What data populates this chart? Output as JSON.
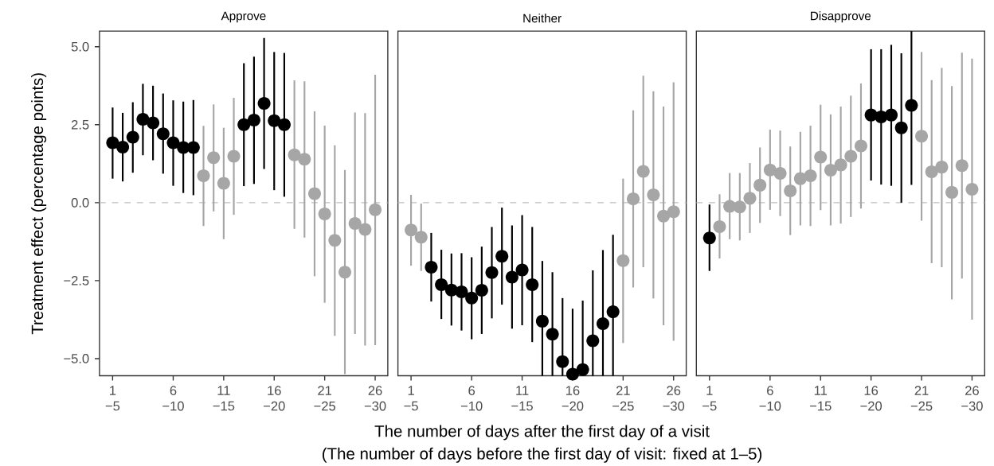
{
  "chart_data": [
    {
      "type": "scatter",
      "title": "Approve",
      "ylabel": "Treatment effect (percentage points)",
      "marker": "circle",
      "categories": [
        "1 −5",
        null,
        null,
        null,
        null,
        null,
        "6 −10",
        null,
        null,
        null,
        null,
        "11 −15",
        null,
        null,
        null,
        null,
        "16 −20",
        null,
        null,
        null,
        null,
        "21 −25",
        null,
        null,
        null,
        null,
        "26 −30"
      ],
      "ylim": [
        -5.55,
        5.5
      ],
      "yticks": [
        {
          "value": -5,
          "label": "−5.0"
        },
        {
          "value": -2.5,
          "label": "−2.5"
        },
        {
          "value": 0,
          "label": "0.0"
        },
        {
          "value": 2.5,
          "label": "2.5"
        },
        {
          "value": 5,
          "label": "5.0"
        }
      ],
      "ref_lines": [
        {
          "axis": "y",
          "value": 0,
          "color": "#bfbfbf",
          "line_style": "dashed"
        }
      ],
      "series": [
        {
          "color": "#000000",
          "values": [
            1.92,
            1.78,
            2.1,
            2.67,
            2.56,
            2.21,
            1.92,
            1.77,
            1.77,
            null,
            null,
            null,
            null,
            2.5,
            2.65,
            3.18,
            2.63,
            2.5,
            null,
            null,
            null,
            null,
            null,
            null,
            null,
            null,
            null
          ],
          "errors": [
            [
              0.77,
              3.05
            ],
            [
              0.68,
              2.88
            ],
            [
              0.96,
              3.22
            ],
            [
              1.52,
              3.81
            ],
            [
              1.36,
              3.75
            ],
            [
              0.93,
              3.5
            ],
            [
              0.54,
              3.28
            ],
            [
              0.31,
              3.24
            ],
            [
              0.24,
              3.29
            ],
            null,
            null,
            null,
            null,
            [
              0.53,
              4.47
            ],
            [
              0.6,
              4.68
            ],
            [
              1.08,
              5.28
            ],
            [
              0.4,
              4.83
            ],
            [
              0.19,
              4.8
            ],
            null,
            null,
            null,
            null,
            null,
            null,
            null,
            null,
            null
          ]
        },
        {
          "color": "#a6a6a6",
          "values": [
            null,
            null,
            null,
            null,
            null,
            null,
            null,
            null,
            null,
            0.86,
            1.44,
            0.62,
            1.49,
            null,
            null,
            null,
            null,
            null,
            1.53,
            1.39,
            0.29,
            -0.36,
            -1.21,
            -2.23,
            -0.67,
            -0.86,
            -0.23
          ],
          "errors": [
            null,
            null,
            null,
            null,
            null,
            null,
            null,
            null,
            null,
            [
              -0.75,
              2.46
            ],
            [
              -0.28,
              3.15
            ],
            [
              -1.17,
              2.4
            ],
            [
              -0.39,
              3.36
            ],
            null,
            null,
            null,
            null,
            null,
            [
              -0.84,
              3.92
            ],
            [
              -1.12,
              3.89
            ],
            [
              -2.36,
              2.93
            ],
            [
              -3.21,
              2.47
            ],
            [
              -4.27,
              1.84
            ],
            [
              -5.5,
              1.05
            ],
            [
              -4.21,
              2.89
            ],
            [
              -4.58,
              2.87
            ],
            [
              -4.57,
              4.1
            ]
          ]
        }
      ]
    },
    {
      "type": "scatter",
      "title": "Neither",
      "xlabel": "The number of days after the first day of a visit",
      "annotations": [
        "(The number of days before the first day of visit: fixed at 1–5)"
      ],
      "marker": "circle",
      "tick_labels": "x",
      "categories": [
        "1 −5",
        null,
        null,
        null,
        null,
        null,
        "6 −10",
        null,
        null,
        null,
        null,
        "11 −15",
        null,
        null,
        null,
        null,
        "16 −20",
        null,
        null,
        null,
        null,
        "21 −25",
        null,
        null,
        null,
        null,
        "26 −30"
      ],
      "ylim": [
        -5.55,
        5.5
      ],
      "ref_lines": [
        {
          "axis": "y",
          "value": 0,
          "color": "#bfbfbf",
          "line_style": "dashed"
        }
      ],
      "series": [
        {
          "color": "#000000",
          "values": [
            null,
            null,
            -2.07,
            -2.63,
            -2.8,
            -2.86,
            -3.06,
            -2.81,
            -2.24,
            -1.72,
            -2.39,
            -2.16,
            -2.63,
            -3.8,
            -4.22,
            -5.1,
            -5.5,
            -5.35,
            -4.43,
            -3.88,
            -3.5,
            null,
            null,
            null,
            null,
            null,
            null
          ],
          "errors": [
            null,
            null,
            [
              -3.17,
              -0.97
            ],
            [
              -3.73,
              -1.51
            ],
            [
              -3.94,
              -1.63
            ],
            [
              -4.1,
              -1.62
            ],
            [
              -4.38,
              -1.75
            ],
            [
              -4.21,
              -1.41
            ],
            [
              -3.71,
              -0.78
            ],
            [
              -3.27,
              -0.16
            ],
            [
              -4.04,
              -0.73
            ],
            [
              -3.93,
              -0.4
            ],
            [
              -4.47,
              -0.78
            ],
            [
              -5.55,
              -1.87
            ],
            [
              -5.55,
              -2.23
            ],
            [
              -5.55,
              -3.06
            ],
            [
              -5.5,
              -3.4
            ],
            [
              -5.55,
              -3.14
            ],
            [
              -5.55,
              -2.17
            ],
            [
              -5.55,
              -1.52
            ],
            [
              -5.55,
              -1.03
            ],
            null,
            null,
            null,
            null,
            null,
            null
          ]
        },
        {
          "color": "#a6a6a6",
          "values": [
            -0.88,
            -1.11,
            null,
            null,
            null,
            null,
            null,
            null,
            null,
            null,
            null,
            null,
            null,
            null,
            null,
            null,
            null,
            null,
            null,
            null,
            null,
            -1.86,
            0.12,
            1.0,
            0.25,
            -0.43,
            -0.29
          ],
          "errors": [
            [
              -2.02,
              0.25
            ],
            [
              -2.19,
              -0.03
            ],
            null,
            null,
            null,
            null,
            null,
            null,
            null,
            null,
            null,
            null,
            null,
            null,
            null,
            null,
            null,
            null,
            null,
            null,
            null,
            [
              -4.5,
              0.77
            ],
            [
              -2.72,
              2.96
            ],
            [
              -2.07,
              4.07
            ],
            [
              -3.07,
              3.57
            ],
            [
              -3.93,
              3.08
            ],
            [
              -4.43,
              3.86
            ]
          ]
        }
      ]
    },
    {
      "type": "scatter",
      "title": "Disapprove",
      "marker": "circle",
      "tick_labels": "x",
      "categories": [
        "1 −5",
        null,
        null,
        null,
        null,
        null,
        "6 −10",
        null,
        null,
        null,
        null,
        "11 −15",
        null,
        null,
        null,
        null,
        "16 −20",
        null,
        null,
        null,
        null,
        "21 −25",
        null,
        null,
        null,
        null,
        "26 −30"
      ],
      "ylim": [
        -5.55,
        5.5
      ],
      "ref_lines": [
        {
          "axis": "y",
          "value": 0,
          "color": "#bfbfbf",
          "line_style": "dashed"
        }
      ],
      "series": [
        {
          "color": "#000000",
          "values": [
            -1.13,
            null,
            null,
            null,
            null,
            null,
            null,
            null,
            null,
            null,
            null,
            null,
            null,
            null,
            null,
            null,
            2.81,
            2.75,
            2.81,
            2.4,
            3.12,
            null,
            null,
            null,
            null,
            null,
            null
          ],
          "errors": [
            [
              -2.19,
              -0.06
            ],
            null,
            null,
            null,
            null,
            null,
            null,
            null,
            null,
            null,
            null,
            null,
            null,
            null,
            null,
            null,
            [
              0.71,
              4.92
            ],
            [
              0.58,
              4.92
            ],
            [
              0.54,
              5.06
            ],
            [
              0.0,
              4.79
            ],
            [
              0.57,
              5.5
            ],
            null,
            null,
            null,
            null,
            null,
            null
          ]
        },
        {
          "color": "#a6a6a6",
          "values": [
            null,
            -0.77,
            -0.12,
            -0.14,
            0.14,
            0.56,
            1.05,
            0.94,
            0.38,
            0.77,
            0.86,
            1.46,
            1.04,
            1.21,
            1.49,
            1.82,
            null,
            null,
            null,
            null,
            null,
            2.13,
            0.99,
            1.14,
            0.33,
            1.19,
            0.43
          ],
          "errors": [
            null,
            [
              -1.79,
              0.27
            ],
            [
              -1.17,
              0.95
            ],
            [
              -1.21,
              0.95
            ],
            [
              -0.97,
              1.27
            ],
            [
              -0.65,
              1.77
            ],
            [
              -0.23,
              2.34
            ],
            [
              -0.43,
              2.31
            ],
            [
              -1.04,
              1.8
            ],
            [
              -0.73,
              2.27
            ],
            [
              -0.75,
              2.47
            ],
            [
              -0.24,
              3.14
            ],
            [
              -0.73,
              2.83
            ],
            [
              -0.67,
              3.08
            ],
            [
              -0.46,
              3.43
            ],
            [
              -0.19,
              3.82
            ],
            null,
            null,
            null,
            null,
            null,
            [
              -0.58,
              4.83
            ],
            [
              -1.94,
              3.93
            ],
            [
              -2.07,
              4.32
            ],
            [
              -3.1,
              3.74
            ],
            [
              -2.43,
              4.81
            ],
            [
              -3.75,
              4.62
            ]
          ]
        }
      ]
    }
  ]
}
